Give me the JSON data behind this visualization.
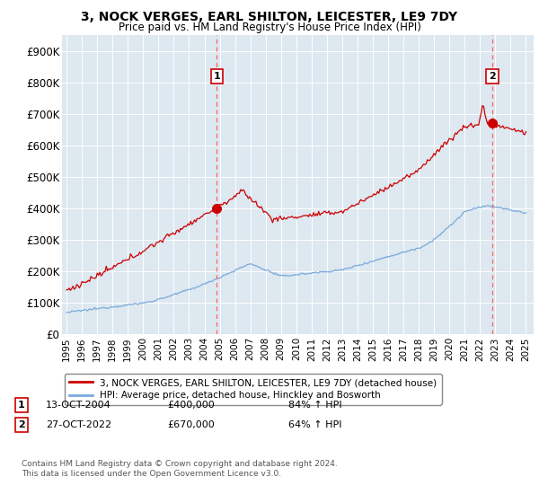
{
  "title": "3, NOCK VERGES, EARL SHILTON, LEICESTER, LE9 7DY",
  "subtitle": "Price paid vs. HM Land Registry's House Price Index (HPI)",
  "background_color": "#dde8f0",
  "plot_bg_color": "#dde8f0",
  "ylim": [
    0,
    950000
  ],
  "yticks": [
    0,
    100000,
    200000,
    300000,
    400000,
    500000,
    600000,
    700000,
    800000,
    900000
  ],
  "ytick_labels": [
    "£0",
    "£100K",
    "£200K",
    "£300K",
    "£400K",
    "£500K",
    "£600K",
    "£700K",
    "£800K",
    "£900K"
  ],
  "legend_label_red": "3, NOCK VERGES, EARL SHILTON, LEICESTER, LE9 7DY (detached house)",
  "legend_label_blue": "HPI: Average price, detached house, Hinckley and Bosworth",
  "footnote": "Contains HM Land Registry data © Crown copyright and database right 2024.\nThis data is licensed under the Open Government Licence v3.0.",
  "marker1_year": 2004.8,
  "marker1_value": 400000,
  "marker1_label": "1",
  "marker1_date": "13-OCT-2004",
  "marker1_price": "£400,000",
  "marker1_hpi": "84% ↑ HPI",
  "marker2_year": 2022.8,
  "marker2_value": 670000,
  "marker2_label": "2",
  "marker2_date": "27-OCT-2022",
  "marker2_price": "£670,000",
  "marker2_hpi": "64% ↑ HPI",
  "red_line_color": "#cc0000",
  "blue_line_color": "#7aaadd",
  "dashed_line_color": "#ff6666",
  "start_year": 1995,
  "end_year": 2025
}
